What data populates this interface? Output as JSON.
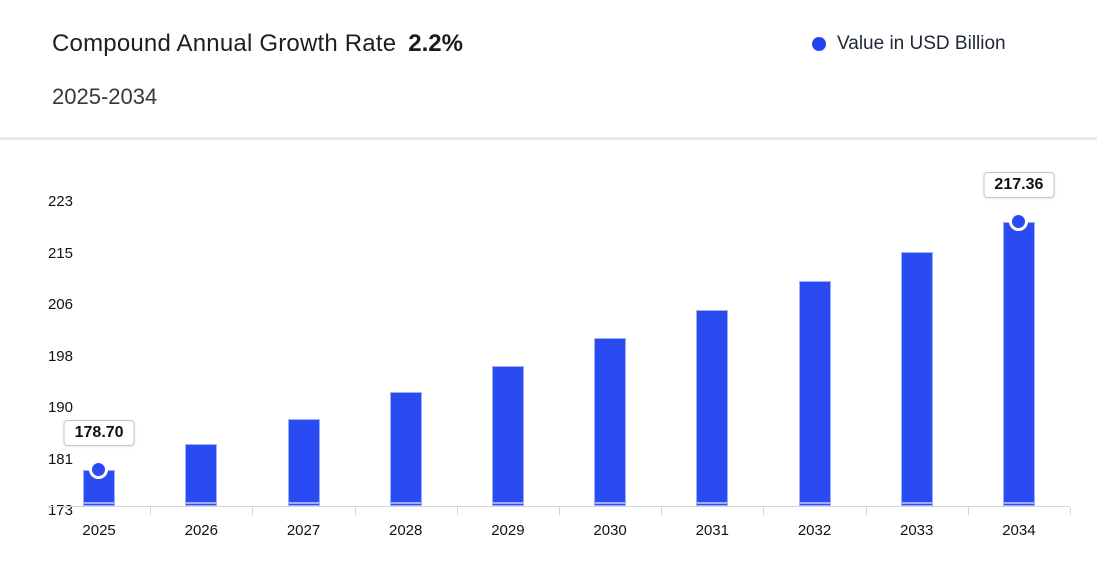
{
  "header": {
    "title": "Compound Annual Growth Rate",
    "cagr": "2.2%",
    "subtitle": "2025-2034",
    "legend_label": "Value in USD Billion"
  },
  "colors": {
    "bar": "#2b4bf2",
    "legend_dot": "#2243ee",
    "axis": "#d6d6d6",
    "divider": "#e9e9e9"
  },
  "chart_data": {
    "type": "bar",
    "title": "Compound Annual Growth Rate 2.2%",
    "subtitle": "2025-2034",
    "legend": [
      "Value in USD Billion"
    ],
    "legend_position": "top-right",
    "categories": [
      "2025",
      "2026",
      "2027",
      "2028",
      "2029",
      "2030",
      "2031",
      "2032",
      "2033",
      "2034"
    ],
    "values": [
      178.7,
      182.63,
      186.65,
      190.76,
      194.95,
      199.24,
      203.63,
      208.11,
      212.69,
      217.36
    ],
    "xlabel": "",
    "ylabel": "",
    "ylim": [
      173,
      223
    ],
    "yticks": [
      223,
      215,
      206,
      198,
      190,
      181,
      173
    ],
    "grid": false,
    "callouts": [
      {
        "index": 0,
        "label": "178.70"
      },
      {
        "index": 9,
        "label": "217.36"
      }
    ],
    "marker_indices": [
      0,
      9
    ]
  }
}
